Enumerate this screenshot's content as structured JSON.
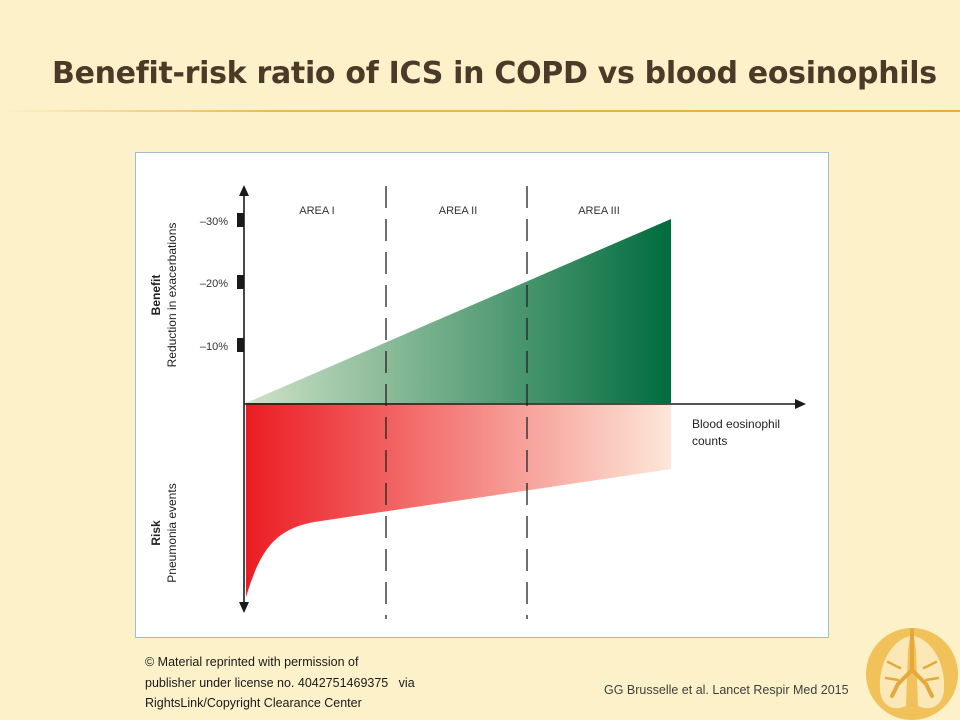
{
  "slide": {
    "title": "Benefit-risk ratio of ICS in COPD vs blood eosinophils",
    "credit_lines": [
      "© Material reprinted with permission of",
      "publisher under license no. 4042751469375   via",
      "RightsLink/Copyright Clearance Center"
    ],
    "citation": "GG Brusselle et al. Lancet Respir Med 2015"
  },
  "figure": {
    "areas": [
      "AREA I",
      "AREA II",
      "AREA III"
    ],
    "benefit_axis": {
      "title": "Benefit",
      "subtitle": "Reduction in exacerbations",
      "ticks": [
        "–30%",
        "–20%",
        "–10%"
      ]
    },
    "risk_axis": {
      "title": "Risk",
      "subtitle": "Pneumonia events"
    },
    "x_axis": {
      "label_lines": [
        "Blood eosinophil",
        "counts"
      ]
    },
    "colors": {
      "benefit_light": "#cfe2c7",
      "benefit_dark": "#006c3e",
      "risk_dark": "#ec1c24",
      "risk_light": "#fde7d8",
      "divider": "#222222",
      "axis": "#1a1a1a"
    }
  }
}
